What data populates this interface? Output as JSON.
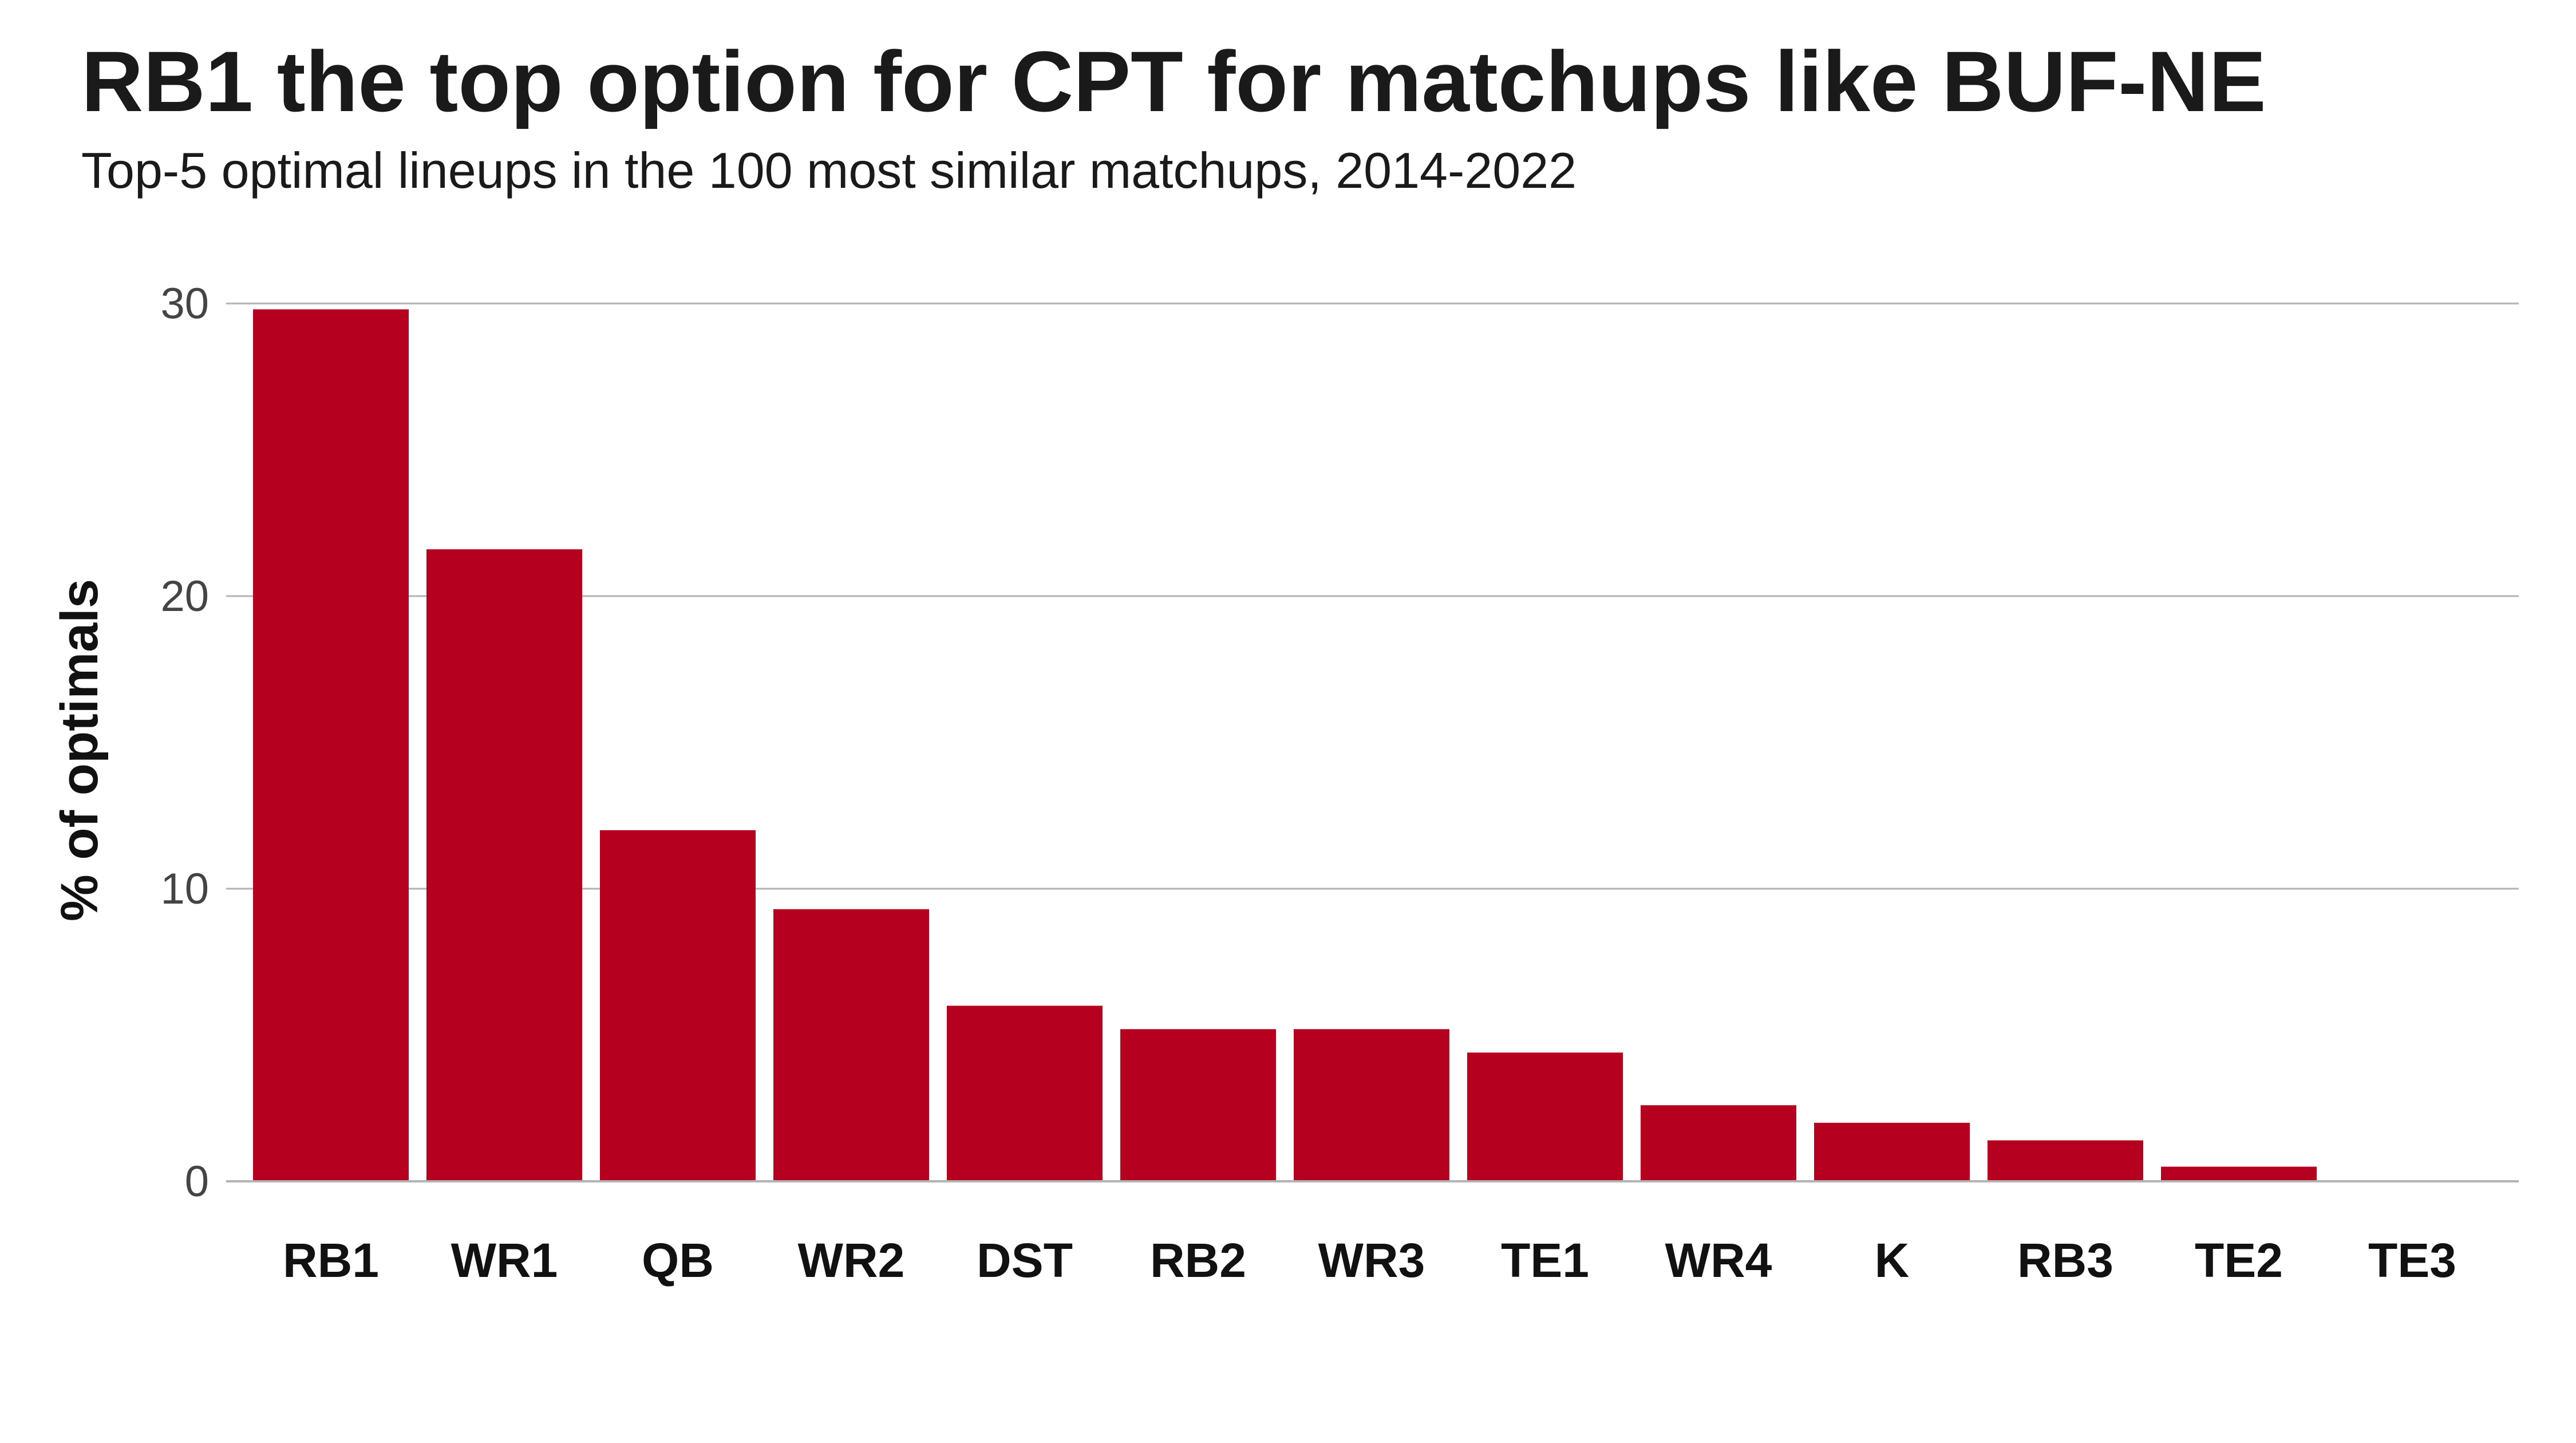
{
  "chart_data": {
    "type": "bar",
    "title": "RB1 the top option for CPT for matchups like BUF-NE",
    "subtitle": "Top-5 optimal lineups in the 100 most similar matchups, 2014-2022",
    "xlabel": "",
    "ylabel": "% of optimals",
    "categories": [
      "RB1",
      "WR1",
      "QB",
      "WR2",
      "DST",
      "RB2",
      "WR3",
      "TE1",
      "WR4",
      "K",
      "RB3",
      "TE2",
      "TE3"
    ],
    "values": [
      29.8,
      21.6,
      12.0,
      9.3,
      6.0,
      5.2,
      5.2,
      4.4,
      2.6,
      2.0,
      1.4,
      0.5,
      0.0
    ],
    "ylim": [
      0,
      30
    ],
    "yticks": [
      0,
      10,
      20,
      30
    ],
    "grid": true,
    "bar_color": "#b5001f",
    "grid_color": "#b3b3b3"
  }
}
